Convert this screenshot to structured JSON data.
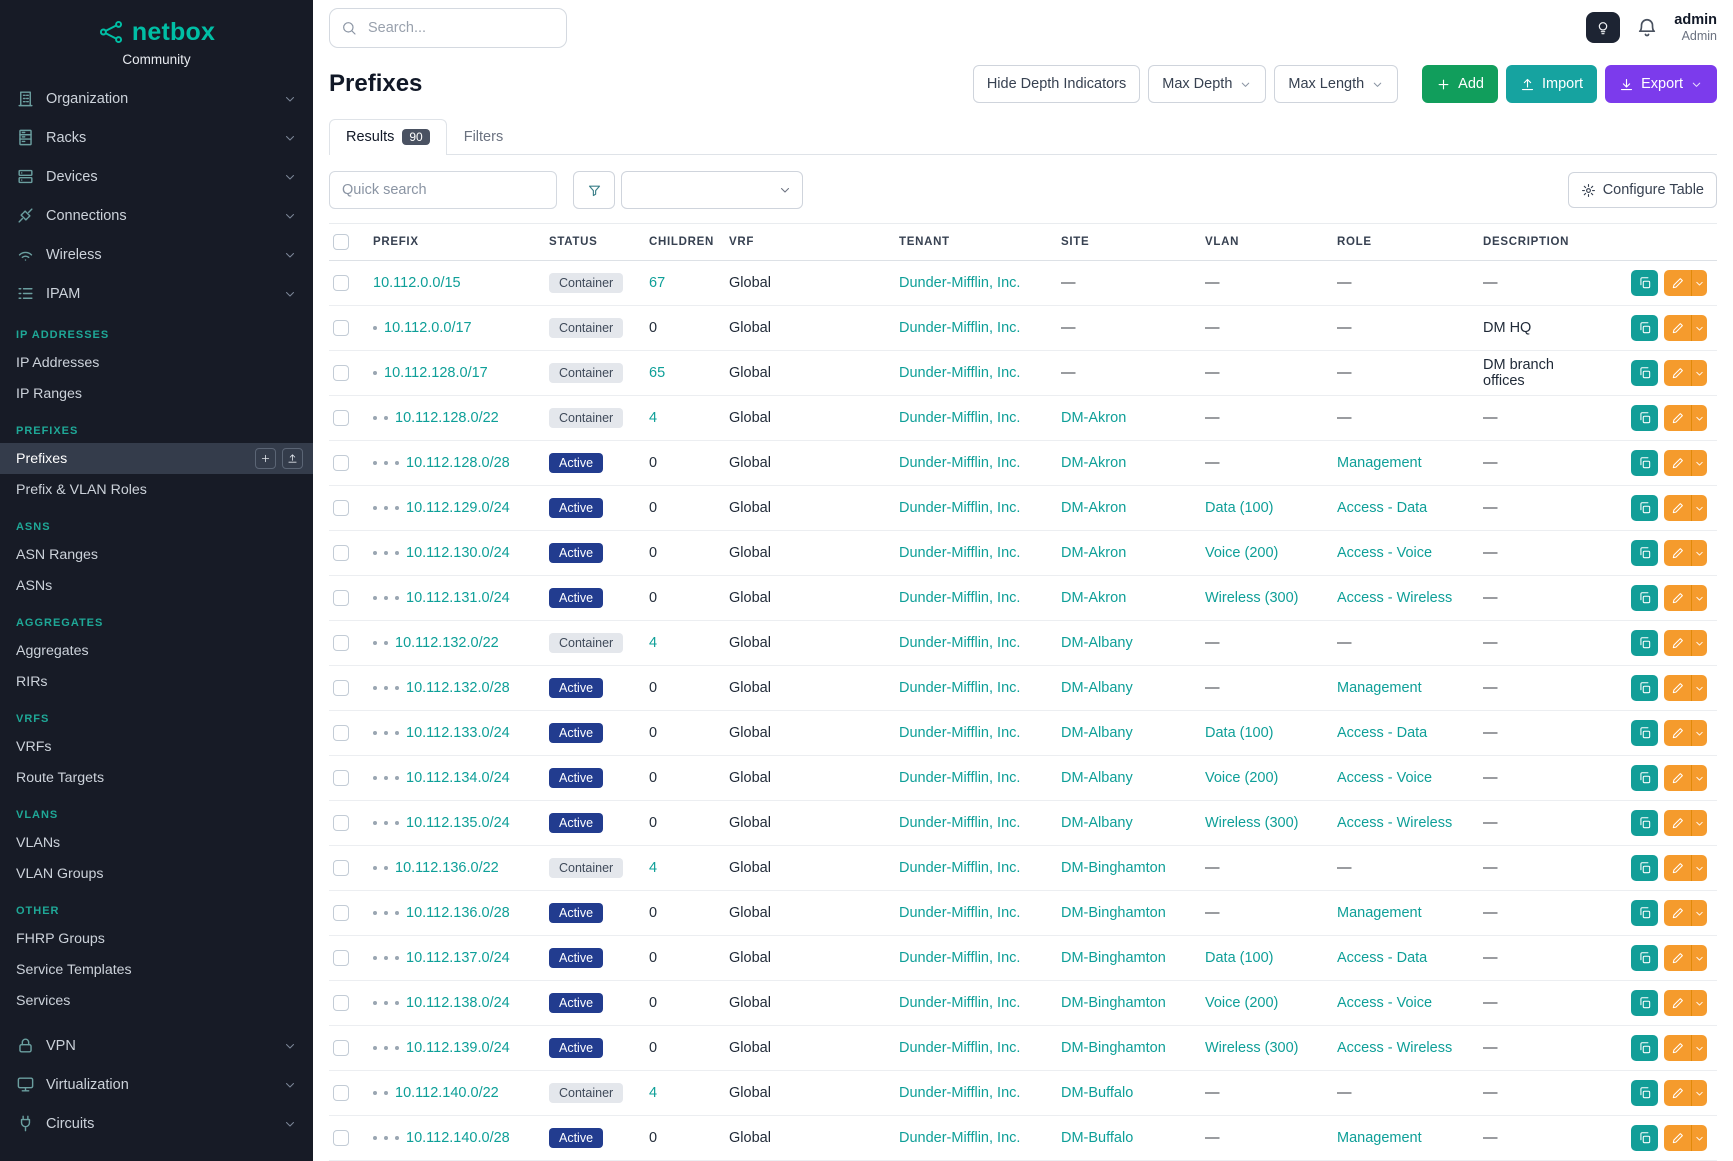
{
  "brand": {
    "name": "netbox",
    "subtitle": "Community"
  },
  "sidebar": {
    "top_items": [
      {
        "label": "Organization",
        "icon": "building-icon"
      },
      {
        "label": "Racks",
        "icon": "rack-icon"
      },
      {
        "label": "Devices",
        "icon": "server-icon"
      },
      {
        "label": "Connections",
        "icon": "cable-icon"
      },
      {
        "label": "Wireless",
        "icon": "wifi-icon"
      },
      {
        "label": "IPAM",
        "icon": "list-icon"
      }
    ],
    "sections": [
      {
        "title": "IP ADDRESSES",
        "items": [
          "IP Addresses",
          "IP Ranges"
        ]
      },
      {
        "title": "PREFIXES",
        "items": [
          "Prefixes",
          "Prefix & VLAN Roles"
        ],
        "active_item": "Prefixes"
      },
      {
        "title": "ASNS",
        "items": [
          "ASN Ranges",
          "ASNs"
        ]
      },
      {
        "title": "AGGREGATES",
        "items": [
          "Aggregates",
          "RIRs"
        ]
      },
      {
        "title": "VRFS",
        "items": [
          "VRFs",
          "Route Targets"
        ]
      },
      {
        "title": "VLANS",
        "items": [
          "VLANs",
          "VLAN Groups"
        ]
      },
      {
        "title": "OTHER",
        "items": [
          "FHRP Groups",
          "Service Templates",
          "Services"
        ]
      }
    ],
    "bottom_items": [
      {
        "label": "VPN",
        "icon": "lock-icon"
      },
      {
        "label": "Virtualization",
        "icon": "monitor-icon"
      },
      {
        "label": "Circuits",
        "icon": "plug-icon"
      }
    ]
  },
  "topbar": {
    "search_placeholder": "Search...",
    "user_name": "admin",
    "user_role": "Admin"
  },
  "page": {
    "title": "Prefixes",
    "hide_depth_label": "Hide Depth Indicators",
    "max_depth_label": "Max Depth",
    "max_length_label": "Max Length",
    "add_label": "Add",
    "import_label": "Import",
    "export_label": "Export",
    "tabs": [
      {
        "label": "Results",
        "badge": "90"
      },
      {
        "label": "Filters"
      }
    ],
    "quick_search_placeholder": "Quick search",
    "configure_table_label": "Configure Table"
  },
  "table": {
    "columns": [
      "PREFIX",
      "STATUS",
      "CHILDREN",
      "VRF",
      "TENANT",
      "SITE",
      "VLAN",
      "ROLE",
      "DESCRIPTION"
    ],
    "rows": [
      {
        "depth": 0,
        "prefix": "10.112.0.0/15",
        "status": "Container",
        "children": "67",
        "vrf": "Global",
        "tenant": "Dunder-Mifflin, Inc.",
        "site": "—",
        "vlan": "—",
        "role": "—",
        "description": "—"
      },
      {
        "depth": 1,
        "prefix": "10.112.0.0/17",
        "status": "Container",
        "children": "0",
        "vrf": "Global",
        "tenant": "Dunder-Mifflin, Inc.",
        "site": "—",
        "vlan": "—",
        "role": "—",
        "description": "DM HQ"
      },
      {
        "depth": 1,
        "prefix": "10.112.128.0/17",
        "status": "Container",
        "children": "65",
        "vrf": "Global",
        "tenant": "Dunder-Mifflin, Inc.",
        "site": "—",
        "vlan": "—",
        "role": "—",
        "description": "DM branch offices"
      },
      {
        "depth": 2,
        "prefix": "10.112.128.0/22",
        "status": "Container",
        "children": "4",
        "vrf": "Global",
        "tenant": "Dunder-Mifflin, Inc.",
        "site": "DM-Akron",
        "vlan": "—",
        "role": "—",
        "description": "—"
      },
      {
        "depth": 3,
        "prefix": "10.112.128.0/28",
        "status": "Active",
        "children": "0",
        "vrf": "Global",
        "tenant": "Dunder-Mifflin, Inc.",
        "site": "DM-Akron",
        "vlan": "—",
        "role": "Management",
        "description": "—"
      },
      {
        "depth": 3,
        "prefix": "10.112.129.0/24",
        "status": "Active",
        "children": "0",
        "vrf": "Global",
        "tenant": "Dunder-Mifflin, Inc.",
        "site": "DM-Akron",
        "vlan": "Data (100)",
        "role": "Access - Data",
        "description": "—"
      },
      {
        "depth": 3,
        "prefix": "10.112.130.0/24",
        "status": "Active",
        "children": "0",
        "vrf": "Global",
        "tenant": "Dunder-Mifflin, Inc.",
        "site": "DM-Akron",
        "vlan": "Voice (200)",
        "role": "Access - Voice",
        "description": "—"
      },
      {
        "depth": 3,
        "prefix": "10.112.131.0/24",
        "status": "Active",
        "children": "0",
        "vrf": "Global",
        "tenant": "Dunder-Mifflin, Inc.",
        "site": "DM-Akron",
        "vlan": "Wireless (300)",
        "role": "Access - Wireless",
        "description": "—"
      },
      {
        "depth": 2,
        "prefix": "10.112.132.0/22",
        "status": "Container",
        "children": "4",
        "vrf": "Global",
        "tenant": "Dunder-Mifflin, Inc.",
        "site": "DM-Albany",
        "vlan": "—",
        "role": "—",
        "description": "—"
      },
      {
        "depth": 3,
        "prefix": "10.112.132.0/28",
        "status": "Active",
        "children": "0",
        "vrf": "Global",
        "tenant": "Dunder-Mifflin, Inc.",
        "site": "DM-Albany",
        "vlan": "—",
        "role": "Management",
        "description": "—"
      },
      {
        "depth": 3,
        "prefix": "10.112.133.0/24",
        "status": "Active",
        "children": "0",
        "vrf": "Global",
        "tenant": "Dunder-Mifflin, Inc.",
        "site": "DM-Albany",
        "vlan": "Data (100)",
        "role": "Access - Data",
        "description": "—"
      },
      {
        "depth": 3,
        "prefix": "10.112.134.0/24",
        "status": "Active",
        "children": "0",
        "vrf": "Global",
        "tenant": "Dunder-Mifflin, Inc.",
        "site": "DM-Albany",
        "vlan": "Voice (200)",
        "role": "Access - Voice",
        "description": "—"
      },
      {
        "depth": 3,
        "prefix": "10.112.135.0/24",
        "status": "Active",
        "children": "0",
        "vrf": "Global",
        "tenant": "Dunder-Mifflin, Inc.",
        "site": "DM-Albany",
        "vlan": "Wireless (300)",
        "role": "Access - Wireless",
        "description": "—"
      },
      {
        "depth": 2,
        "prefix": "10.112.136.0/22",
        "status": "Container",
        "children": "4",
        "vrf": "Global",
        "tenant": "Dunder-Mifflin, Inc.",
        "site": "DM-Binghamton",
        "vlan": "—",
        "role": "—",
        "description": "—"
      },
      {
        "depth": 3,
        "prefix": "10.112.136.0/28",
        "status": "Active",
        "children": "0",
        "vrf": "Global",
        "tenant": "Dunder-Mifflin, Inc.",
        "site": "DM-Binghamton",
        "vlan": "—",
        "role": "Management",
        "description": "—"
      },
      {
        "depth": 3,
        "prefix": "10.112.137.0/24",
        "status": "Active",
        "children": "0",
        "vrf": "Global",
        "tenant": "Dunder-Mifflin, Inc.",
        "site": "DM-Binghamton",
        "vlan": "Data (100)",
        "role": "Access - Data",
        "description": "—"
      },
      {
        "depth": 3,
        "prefix": "10.112.138.0/24",
        "status": "Active",
        "children": "0",
        "vrf": "Global",
        "tenant": "Dunder-Mifflin, Inc.",
        "site": "DM-Binghamton",
        "vlan": "Voice (200)",
        "role": "Access - Voice",
        "description": "—"
      },
      {
        "depth": 3,
        "prefix": "10.112.139.0/24",
        "status": "Active",
        "children": "0",
        "vrf": "Global",
        "tenant": "Dunder-Mifflin, Inc.",
        "site": "DM-Binghamton",
        "vlan": "Wireless (300)",
        "role": "Access - Wireless",
        "description": "—"
      },
      {
        "depth": 2,
        "prefix": "10.112.140.0/22",
        "status": "Container",
        "children": "4",
        "vrf": "Global",
        "tenant": "Dunder-Mifflin, Inc.",
        "site": "DM-Buffalo",
        "vlan": "—",
        "role": "—",
        "description": "—"
      },
      {
        "depth": 3,
        "prefix": "10.112.140.0/28",
        "status": "Active",
        "children": "0",
        "vrf": "Global",
        "tenant": "Dunder-Mifflin, Inc.",
        "site": "DM-Buffalo",
        "vlan": "—",
        "role": "Management",
        "description": "—"
      }
    ]
  },
  "colors": {
    "brand_teal": "#00bfa5",
    "link_teal": "#0e9f98",
    "sidebar_bg": "#171b26",
    "section_title_teal": "#1fa897",
    "add_green": "#119e5c",
    "import_teal": "#16a3a0",
    "export_purple": "#7c3bec",
    "edit_orange": "#f59b2d",
    "clone_teal": "#129e98",
    "badge_active_bg": "#223c8f",
    "badge_container_bg": "#e4e7ec"
  }
}
